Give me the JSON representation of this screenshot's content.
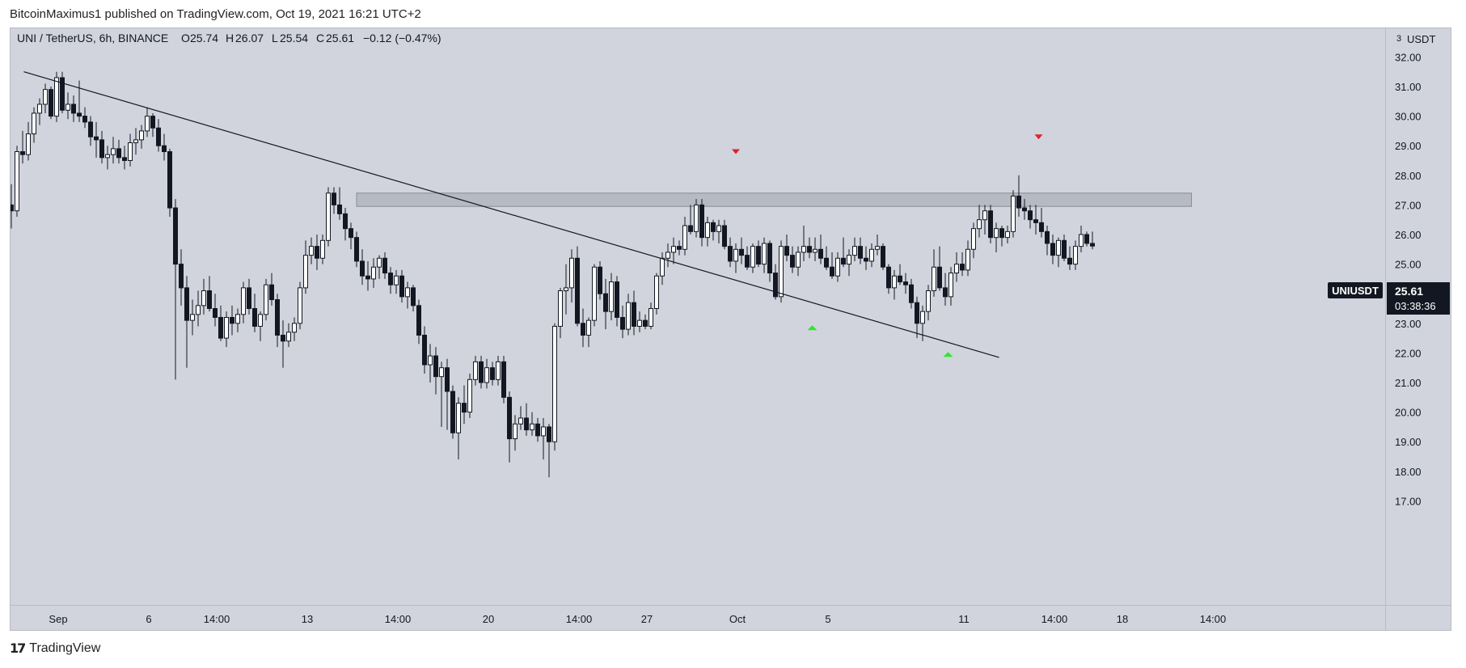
{
  "header": {
    "published": "BitcoinMaximus1 published on TradingView.com, Oct 19, 2021 16:21 UTC+2"
  },
  "footer": {
    "brand": "TradingView"
  },
  "colors": {
    "background": "#d1d4dc",
    "candle_up_fill": "#ffffff",
    "candle_down_fill": "#131722",
    "wick": "#131722",
    "trendline": "#131722",
    "resistance_zone": "#b7bac2",
    "marker_down": "#e0202a",
    "marker_up": "#2ee82e",
    "price_tag_bg": "#131722",
    "price_tag_text": "#ffffff"
  },
  "chart_data": {
    "type": "candlestick",
    "legend": {
      "symbol": "UNI / TetherUS, 6h, BINANCE",
      "open_label": "O",
      "open": "25.74",
      "high_label": "H",
      "high": "26.07",
      "low_label": "L",
      "low": "25.54",
      "close_label": "C",
      "close": "25.61",
      "change": "−0.12 (−0.47%)"
    },
    "y_axis": {
      "currency": "USDT",
      "multiplier_mark": "3",
      "ticks": [
        "17.00",
        "18.00",
        "19.00",
        "20.00",
        "21.00",
        "22.00",
        "23.00",
        "24.00",
        "25.00",
        "26.00",
        "27.00",
        "28.00",
        "29.00",
        "30.00",
        "31.00",
        "32.00"
      ],
      "range": [
        16.6,
        33.0
      ]
    },
    "x_axis": {
      "labels": [
        {
          "text": "Sep",
          "t": 4
        },
        {
          "text": "6",
          "t": 20
        },
        {
          "text": "14:00",
          "t": 32
        },
        {
          "text": "13",
          "t": 48
        },
        {
          "text": "14:00",
          "t": 64
        },
        {
          "text": "20",
          "t": 80
        },
        {
          "text": "14:00",
          "t": 96
        },
        {
          "text": "27",
          "t": 108
        },
        {
          "text": "Oct",
          "t": 124
        },
        {
          "text": "5",
          "t": 140
        },
        {
          "text": "11",
          "t": 164
        },
        {
          "text": "14:00",
          "t": 180
        },
        {
          "text": "18",
          "t": 192
        },
        {
          "text": "14:00",
          "t": 208
        }
      ],
      "range": [
        0,
        210
      ]
    },
    "price_tag": {
      "symbol": "UNIUSDT",
      "price": "25.61",
      "countdown": "03:38:36",
      "value": 25.61
    },
    "ohlc": [
      [
        27.0,
        27.7,
        26.2,
        26.8
      ],
      [
        26.8,
        29.0,
        26.6,
        28.8
      ],
      [
        28.8,
        29.5,
        28.4,
        28.7
      ],
      [
        28.7,
        29.8,
        28.5,
        29.4
      ],
      [
        29.4,
        30.3,
        29.1,
        30.1
      ],
      [
        30.1,
        30.6,
        29.7,
        30.4
      ],
      [
        30.4,
        31.1,
        30.1,
        30.9
      ],
      [
        30.9,
        31.0,
        29.9,
        30.0
      ],
      [
        30.0,
        31.5,
        29.8,
        31.3
      ],
      [
        31.3,
        31.5,
        30.1,
        30.2
      ],
      [
        30.2,
        30.8,
        29.9,
        30.4
      ],
      [
        30.4,
        30.7,
        29.8,
        30.1
      ],
      [
        30.1,
        31.2,
        29.8,
        30.0
      ],
      [
        30.0,
        30.3,
        29.6,
        29.8
      ],
      [
        29.8,
        30.0,
        29.0,
        29.3
      ],
      [
        29.3,
        29.8,
        28.6,
        29.2
      ],
      [
        29.2,
        29.5,
        28.4,
        28.6
      ],
      [
        28.6,
        29.0,
        28.2,
        28.7
      ],
      [
        28.7,
        29.3,
        28.4,
        28.9
      ],
      [
        28.9,
        29.2,
        28.4,
        28.6
      ],
      [
        28.6,
        29.0,
        28.2,
        28.5
      ],
      [
        28.5,
        29.4,
        28.3,
        29.1
      ],
      [
        29.1,
        29.6,
        28.7,
        29.2
      ],
      [
        29.2,
        29.7,
        28.9,
        29.5
      ],
      [
        29.5,
        30.3,
        29.3,
        30.0
      ],
      [
        30.0,
        30.1,
        29.3,
        29.6
      ],
      [
        29.6,
        29.9,
        28.8,
        29.0
      ],
      [
        29.0,
        29.4,
        28.5,
        28.8
      ],
      [
        28.8,
        28.9,
        26.6,
        26.9
      ],
      [
        26.9,
        27.2,
        21.1,
        25.0
      ],
      [
        25.0,
        25.5,
        23.6,
        24.2
      ],
      [
        24.2,
        24.6,
        21.5,
        23.1
      ],
      [
        23.1,
        23.8,
        22.6,
        23.3
      ],
      [
        23.3,
        24.1,
        22.9,
        23.6
      ],
      [
        23.6,
        24.5,
        23.3,
        24.1
      ],
      [
        24.1,
        24.6,
        23.4,
        23.5
      ],
      [
        23.5,
        24.0,
        22.9,
        23.2
      ],
      [
        23.2,
        23.6,
        22.4,
        22.5
      ],
      [
        22.5,
        23.4,
        22.2,
        23.2
      ],
      [
        23.2,
        23.6,
        22.6,
        23.0
      ],
      [
        23.0,
        23.5,
        22.7,
        23.3
      ],
      [
        23.3,
        24.4,
        23.0,
        24.2
      ],
      [
        24.2,
        24.5,
        23.3,
        23.5
      ],
      [
        23.5,
        24.0,
        22.7,
        22.9
      ],
      [
        22.9,
        23.4,
        22.4,
        23.3
      ],
      [
        23.3,
        24.5,
        23.1,
        24.3
      ],
      [
        24.3,
        24.7,
        23.6,
        23.8
      ],
      [
        23.8,
        24.0,
        22.2,
        22.6
      ],
      [
        22.6,
        23.1,
        21.5,
        22.4
      ],
      [
        22.4,
        23.0,
        22.2,
        22.7
      ],
      [
        22.7,
        23.2,
        22.4,
        23.0
      ],
      [
        23.0,
        24.4,
        22.8,
        24.2
      ],
      [
        24.2,
        25.8,
        24.0,
        25.3
      ],
      [
        25.3,
        25.9,
        25.0,
        25.6
      ],
      [
        25.6,
        26.0,
        24.8,
        25.2
      ],
      [
        25.2,
        26.0,
        25.0,
        25.8
      ],
      [
        25.8,
        27.6,
        25.6,
        27.4
      ],
      [
        27.4,
        27.6,
        26.7,
        27.0
      ],
      [
        27.0,
        27.6,
        26.5,
        26.7
      ],
      [
        26.7,
        26.9,
        25.8,
        26.2
      ],
      [
        26.2,
        26.4,
        25.5,
        25.9
      ],
      [
        25.9,
        26.1,
        24.9,
        25.1
      ],
      [
        25.1,
        25.5,
        24.3,
        24.6
      ],
      [
        24.6,
        25.1,
        24.1,
        24.5
      ],
      [
        24.5,
        25.2,
        24.2,
        24.9
      ],
      [
        24.9,
        25.3,
        24.5,
        25.2
      ],
      [
        25.2,
        25.4,
        24.5,
        24.7
      ],
      [
        24.7,
        24.9,
        24.0,
        24.3
      ],
      [
        24.3,
        24.8,
        24.0,
        24.6
      ],
      [
        24.6,
        24.8,
        23.7,
        23.9
      ],
      [
        23.9,
        24.4,
        23.5,
        24.2
      ],
      [
        24.2,
        24.3,
        23.4,
        23.6
      ],
      [
        23.6,
        23.8,
        22.3,
        22.6
      ],
      [
        22.6,
        22.9,
        21.3,
        21.6
      ],
      [
        21.6,
        22.3,
        21.0,
        21.9
      ],
      [
        21.9,
        22.2,
        20.6,
        21.2
      ],
      [
        21.2,
        21.7,
        19.5,
        21.5
      ],
      [
        21.5,
        21.8,
        19.4,
        20.7
      ],
      [
        20.7,
        20.9,
        19.1,
        19.3
      ],
      [
        19.3,
        20.5,
        18.4,
        20.3
      ],
      [
        20.3,
        20.9,
        19.6,
        20.0
      ],
      [
        20.0,
        21.3,
        19.8,
        21.1
      ],
      [
        21.1,
        21.9,
        20.9,
        21.7
      ],
      [
        21.7,
        21.9,
        20.8,
        21.0
      ],
      [
        21.0,
        21.8,
        20.8,
        21.5
      ],
      [
        21.5,
        21.7,
        20.9,
        21.1
      ],
      [
        21.1,
        21.9,
        20.9,
        21.7
      ],
      [
        21.7,
        21.9,
        20.3,
        20.5
      ],
      [
        20.5,
        20.7,
        18.3,
        19.1
      ],
      [
        19.1,
        19.9,
        18.7,
        19.6
      ],
      [
        19.6,
        20.2,
        19.4,
        19.8
      ],
      [
        19.8,
        20.3,
        19.2,
        19.4
      ],
      [
        19.4,
        20.0,
        19.2,
        19.6
      ],
      [
        19.6,
        19.8,
        19.0,
        19.2
      ],
      [
        19.2,
        19.8,
        18.4,
        19.5
      ],
      [
        19.5,
        19.6,
        17.8,
        19.0
      ],
      [
        19.0,
        23.0,
        18.7,
        22.9
      ],
      [
        22.9,
        24.2,
        22.5,
        24.1
      ],
      [
        24.1,
        25.0,
        23.3,
        24.2
      ],
      [
        24.2,
        25.5,
        23.7,
        25.2
      ],
      [
        25.2,
        25.6,
        22.9,
        23.0
      ],
      [
        23.0,
        23.5,
        22.2,
        22.6
      ],
      [
        22.6,
        23.2,
        22.2,
        23.1
      ],
      [
        23.1,
        25.0,
        22.9,
        24.9
      ],
      [
        24.9,
        25.1,
        23.8,
        24.0
      ],
      [
        24.0,
        24.5,
        22.8,
        23.4
      ],
      [
        23.4,
        24.7,
        23.1,
        24.4
      ],
      [
        24.4,
        24.6,
        22.9,
        23.2
      ],
      [
        23.2,
        23.6,
        22.5,
        22.8
      ],
      [
        22.8,
        24.0,
        22.6,
        23.7
      ],
      [
        23.7,
        24.1,
        22.6,
        22.9
      ],
      [
        22.9,
        23.4,
        22.7,
        23.1
      ],
      [
        23.1,
        23.3,
        22.8,
        22.9
      ],
      [
        22.9,
        23.7,
        22.8,
        23.5
      ],
      [
        23.5,
        24.7,
        23.3,
        24.6
      ],
      [
        24.6,
        25.4,
        24.3,
        25.2
      ],
      [
        25.2,
        25.7,
        24.9,
        25.4
      ],
      [
        25.4,
        25.9,
        25.0,
        25.6
      ],
      [
        25.6,
        25.8,
        25.3,
        25.5
      ],
      [
        25.5,
        26.6,
        25.3,
        26.3
      ],
      [
        26.3,
        27.0,
        26.0,
        26.1
      ],
      [
        26.1,
        27.2,
        25.9,
        27.0
      ],
      [
        27.0,
        27.2,
        25.6,
        25.9
      ],
      [
        25.9,
        26.6,
        25.6,
        26.4
      ],
      [
        26.4,
        26.5,
        25.8,
        26.1
      ],
      [
        26.1,
        26.5,
        25.7,
        26.3
      ],
      [
        26.3,
        26.5,
        25.5,
        25.6
      ],
      [
        25.6,
        25.9,
        24.9,
        25.1
      ],
      [
        25.1,
        25.7,
        24.7,
        25.5
      ],
      [
        25.5,
        25.9,
        25.0,
        25.3
      ],
      [
        25.3,
        25.6,
        24.8,
        24.9
      ],
      [
        24.9,
        25.7,
        24.7,
        25.6
      ],
      [
        25.6,
        25.8,
        24.9,
        25.0
      ],
      [
        25.0,
        25.9,
        24.7,
        25.7
      ],
      [
        25.7,
        25.8,
        24.4,
        24.7
      ],
      [
        24.7,
        25.0,
        23.8,
        23.9
      ],
      [
        23.9,
        25.8,
        23.7,
        25.6
      ],
      [
        25.6,
        26.0,
        25.1,
        25.3
      ],
      [
        25.3,
        25.6,
        24.7,
        24.9
      ],
      [
        24.9,
        25.6,
        24.6,
        25.4
      ],
      [
        25.4,
        26.3,
        25.1,
        25.6
      ],
      [
        25.6,
        25.9,
        25.2,
        25.4
      ],
      [
        25.4,
        25.9,
        25.1,
        25.5
      ],
      [
        25.5,
        26.0,
        25.0,
        25.2
      ],
      [
        25.2,
        25.6,
        24.8,
        24.9
      ],
      [
        24.9,
        25.4,
        24.5,
        24.6
      ],
      [
        24.6,
        25.4,
        24.4,
        25.2
      ],
      [
        25.2,
        25.9,
        24.9,
        25.0
      ],
      [
        25.0,
        25.5,
        24.6,
        25.3
      ],
      [
        25.3,
        25.9,
        25.1,
        25.6
      ],
      [
        25.6,
        25.9,
        25.0,
        25.2
      ],
      [
        25.2,
        25.6,
        24.8,
        25.1
      ],
      [
        25.1,
        25.7,
        24.9,
        25.5
      ],
      [
        25.5,
        26.0,
        25.3,
        25.6
      ],
      [
        25.6,
        25.7,
        24.8,
        24.9
      ],
      [
        24.9,
        25.0,
        24.0,
        24.2
      ],
      [
        24.2,
        24.8,
        23.8,
        24.6
      ],
      [
        24.6,
        25.0,
        24.3,
        24.4
      ],
      [
        24.4,
        24.7,
        24.0,
        24.3
      ],
      [
        24.3,
        24.5,
        23.5,
        23.7
      ],
      [
        23.7,
        23.9,
        22.5,
        23.0
      ],
      [
        23.0,
        23.6,
        22.4,
        23.4
      ],
      [
        23.4,
        24.3,
        23.1,
        24.1
      ],
      [
        24.1,
        25.5,
        23.9,
        24.9
      ],
      [
        24.9,
        25.6,
        24.1,
        24.2
      ],
      [
        24.2,
        24.7,
        23.6,
        23.9
      ],
      [
        23.9,
        24.9,
        23.6,
        24.7
      ],
      [
        24.7,
        25.4,
        24.4,
        25.0
      ],
      [
        25.0,
        25.4,
        24.6,
        24.8
      ],
      [
        24.8,
        25.8,
        24.6,
        25.5
      ],
      [
        25.5,
        26.4,
        25.2,
        26.2
      ],
      [
        26.2,
        27.0,
        25.9,
        26.5
      ],
      [
        26.5,
        27.0,
        26.0,
        26.8
      ],
      [
        26.8,
        27.0,
        25.7,
        25.9
      ],
      [
        25.9,
        26.4,
        25.4,
        26.2
      ],
      [
        26.2,
        26.3,
        25.6,
        25.9
      ],
      [
        25.9,
        26.3,
        25.7,
        26.1
      ],
      [
        26.1,
        27.5,
        25.9,
        27.3
      ],
      [
        27.3,
        28.0,
        26.6,
        26.9
      ],
      [
        26.9,
        27.2,
        26.5,
        26.8
      ],
      [
        26.8,
        27.0,
        26.2,
        26.5
      ],
      [
        26.5,
        27.0,
        26.0,
        26.4
      ],
      [
        26.4,
        26.9,
        25.9,
        26.1
      ],
      [
        26.1,
        26.3,
        25.3,
        25.7
      ],
      [
        25.7,
        26.0,
        25.0,
        25.3
      ],
      [
        25.3,
        25.9,
        24.9,
        25.8
      ],
      [
        25.8,
        26.0,
        25.1,
        25.2
      ],
      [
        25.2,
        25.6,
        24.8,
        25.0
      ],
      [
        25.0,
        25.8,
        24.8,
        25.6
      ],
      [
        25.6,
        26.3,
        25.4,
        26.0
      ],
      [
        26.0,
        26.1,
        25.6,
        25.7
      ],
      [
        25.7,
        26.1,
        25.5,
        25.61
      ]
    ],
    "annotations": {
      "trendline": {
        "from": {
          "t": 2.2,
          "price": 31.5
        },
        "to": {
          "t": 174.5,
          "price": 21.85
        }
      },
      "resistance_zone": {
        "t_start": 61,
        "t_end": 208.5,
        "price_low": 26.95,
        "price_high": 27.4
      },
      "markers": [
        {
          "direction": "down",
          "t": 128,
          "price": 28.8
        },
        {
          "direction": "down",
          "t": 181.5,
          "price": 29.3
        },
        {
          "direction": "up",
          "t": 141.5,
          "price": 22.85
        },
        {
          "direction": "up",
          "t": 165.5,
          "price": 21.95
        }
      ]
    }
  }
}
